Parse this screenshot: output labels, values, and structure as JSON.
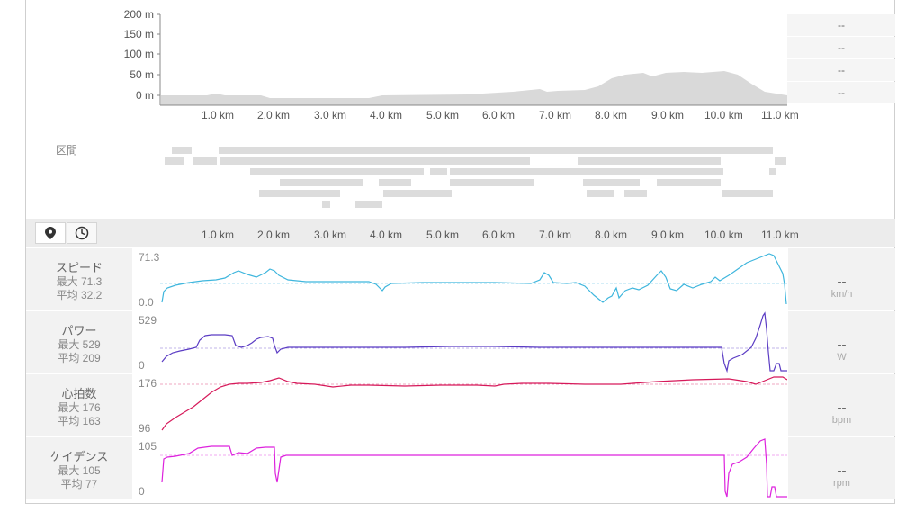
{
  "elevation": {
    "y_ticks": [
      "200 m",
      "150 m",
      "100 m",
      "50 m",
      "0 m"
    ],
    "x_ticks": [
      "1.0 km",
      "2.0 km",
      "3.0 km",
      "4.0 km",
      "5.0 km",
      "6.0 km",
      "7.0 km",
      "8.0 km",
      "9.0 km",
      "10.0 km",
      "11.0 km"
    ],
    "right_values": [
      "--",
      "--",
      "--",
      "--"
    ],
    "fill_color": "#d9d9d9"
  },
  "segments": {
    "label": "区間"
  },
  "toolbar": {
    "distance_icon": "map-pin-icon",
    "time_icon": "clock-icon",
    "x_ticks": [
      "1.0 km",
      "2.0 km",
      "3.0 km",
      "4.0 km",
      "5.0 km",
      "6.0 km",
      "7.0 km",
      "8.0 km",
      "9.0 km",
      "10.0 km",
      "11.0 km"
    ]
  },
  "panels": [
    {
      "name": "スピード",
      "max": "最大 71.3",
      "avg": "平均 32.2",
      "top": "71.3",
      "bottom": "0.0",
      "value": "--",
      "unit": "km/h",
      "color": "#3fb6dd"
    },
    {
      "name": "パワー",
      "max": "最大 529",
      "avg": "平均 209",
      "top": "529",
      "bottom": "0",
      "value": "--",
      "unit": "W",
      "color": "#5b3cc4"
    },
    {
      "name": "心拍数",
      "max": "最大 176",
      "avg": "平均 163",
      "top": "176",
      "bottom": "96",
      "value": "--",
      "unit": "bpm",
      "color": "#d6195a"
    },
    {
      "name": "ケイデンス",
      "max": "最大 105",
      "avg": "平均 77",
      "top": "105",
      "bottom": "0",
      "value": "--",
      "unit": "rpm",
      "color": "#dd22dd"
    }
  ]
}
